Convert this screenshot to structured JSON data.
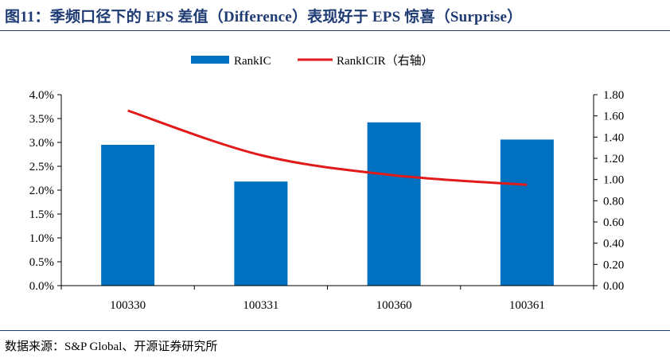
{
  "title": "图11：季频口径下的 EPS 差值（Difference）表现好于 EPS 惊喜（Surprise）",
  "source": "数据来源：S&P Global、开源证券研究所",
  "colors": {
    "bar": "#0070c0",
    "line": "#e11a1a",
    "title": "#1f3b73"
  },
  "chart_data": {
    "type": "bar",
    "categories": [
      "100330",
      "100331",
      "100360",
      "100361"
    ],
    "series": [
      {
        "name": "RankIC",
        "type": "bar",
        "axis": "left",
        "values": [
          0.0295,
          0.0218,
          0.0342,
          0.0306
        ]
      },
      {
        "name": "RankICIR（右轴）",
        "type": "line",
        "axis": "right",
        "values": [
          1.65,
          1.23,
          1.04,
          0.95
        ]
      }
    ],
    "y_left": {
      "min": 0,
      "max": 0.04,
      "step": 0.005,
      "ticks": [
        "0.0%",
        "0.5%",
        "1.0%",
        "1.5%",
        "2.0%",
        "2.5%",
        "3.0%",
        "3.5%",
        "4.0%"
      ]
    },
    "y_right": {
      "min": 0,
      "max": 1.8,
      "step": 0.2,
      "ticks": [
        "0.00",
        "0.20",
        "0.40",
        "0.60",
        "0.80",
        "1.00",
        "1.20",
        "1.40",
        "1.60",
        "1.80"
      ]
    },
    "legend_position": "top-center",
    "grid": false
  }
}
